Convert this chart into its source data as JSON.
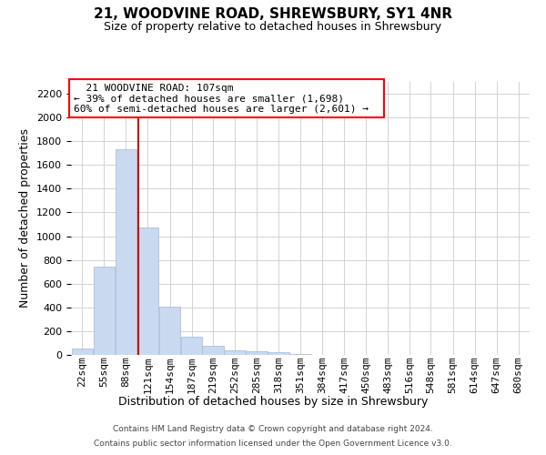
{
  "title": "21, WOODVINE ROAD, SHREWSBURY, SY1 4NR",
  "subtitle": "Size of property relative to detached houses in Shrewsbury",
  "xlabel": "Distribution of detached houses by size in Shrewsbury",
  "ylabel": "Number of detached properties",
  "footer_line1": "Contains HM Land Registry data © Crown copyright and database right 2024.",
  "footer_line2": "Contains public sector information licensed under the Open Government Licence v3.0.",
  "annotation_line1": "21 WOODVINE ROAD: 107sqm",
  "annotation_line2": "← 39% of detached houses are smaller (1,698)",
  "annotation_line3": "60% of semi-detached houses are larger (2,601) →",
  "bar_color": "#c9d9f0",
  "bar_edgecolor": "#a0b8d8",
  "vline_color": "#cc0000",
  "vline_x": 107,
  "categories": [
    22,
    55,
    88,
    121,
    154,
    187,
    219,
    252,
    285,
    318,
    351,
    384,
    417,
    450,
    483,
    516,
    548,
    581,
    614,
    647,
    680
  ],
  "bin_width": 33,
  "values": [
    50,
    740,
    1730,
    1070,
    410,
    155,
    75,
    40,
    30,
    20,
    8,
    3,
    2,
    0,
    0,
    0,
    0,
    0,
    0,
    0,
    0
  ],
  "ylim": [
    0,
    2300
  ],
  "yticks": [
    0,
    200,
    400,
    600,
    800,
    1000,
    1200,
    1400,
    1600,
    1800,
    2000,
    2200
  ],
  "xlim_left": 5,
  "xlim_right": 697,
  "background_color": "#ffffff",
  "grid_color": "#cccccc",
  "title_fontsize": 11,
  "subtitle_fontsize": 9,
  "ylabel_fontsize": 9,
  "xlabel_fontsize": 9,
  "tick_fontsize": 8,
  "footer_fontsize": 6.5,
  "annot_fontsize": 8
}
